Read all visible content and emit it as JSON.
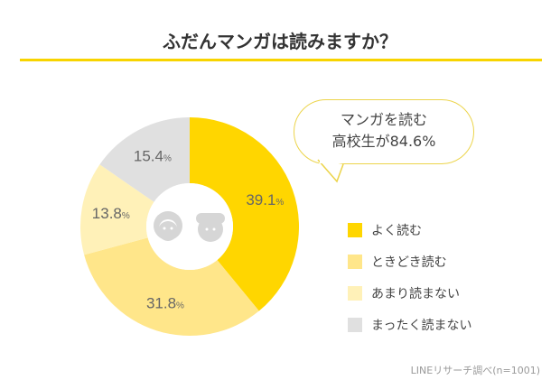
{
  "title": "ふだんマンガは読みますか？",
  "callout": {
    "line1": "マンガを読む",
    "line2": "高校生が84.6%"
  },
  "source": "LINEリサーチ調べ(n=1001)",
  "chart_data": {
    "type": "pie",
    "donut": true,
    "title": "ふだんマンガは読みますか？",
    "categories": [
      "よく読む",
      "ときどき読む",
      "あまり読まない",
      "まったく読まない"
    ],
    "values": [
      39.1,
      31.8,
      13.8,
      15.4
    ],
    "labels": [
      "39.1",
      "31.8",
      "13.8",
      "15.4"
    ],
    "unit": "%",
    "colors": [
      "#ffd600",
      "#ffe68a",
      "#fff1b8",
      "#e0e0e0"
    ],
    "legend_position": "right"
  }
}
